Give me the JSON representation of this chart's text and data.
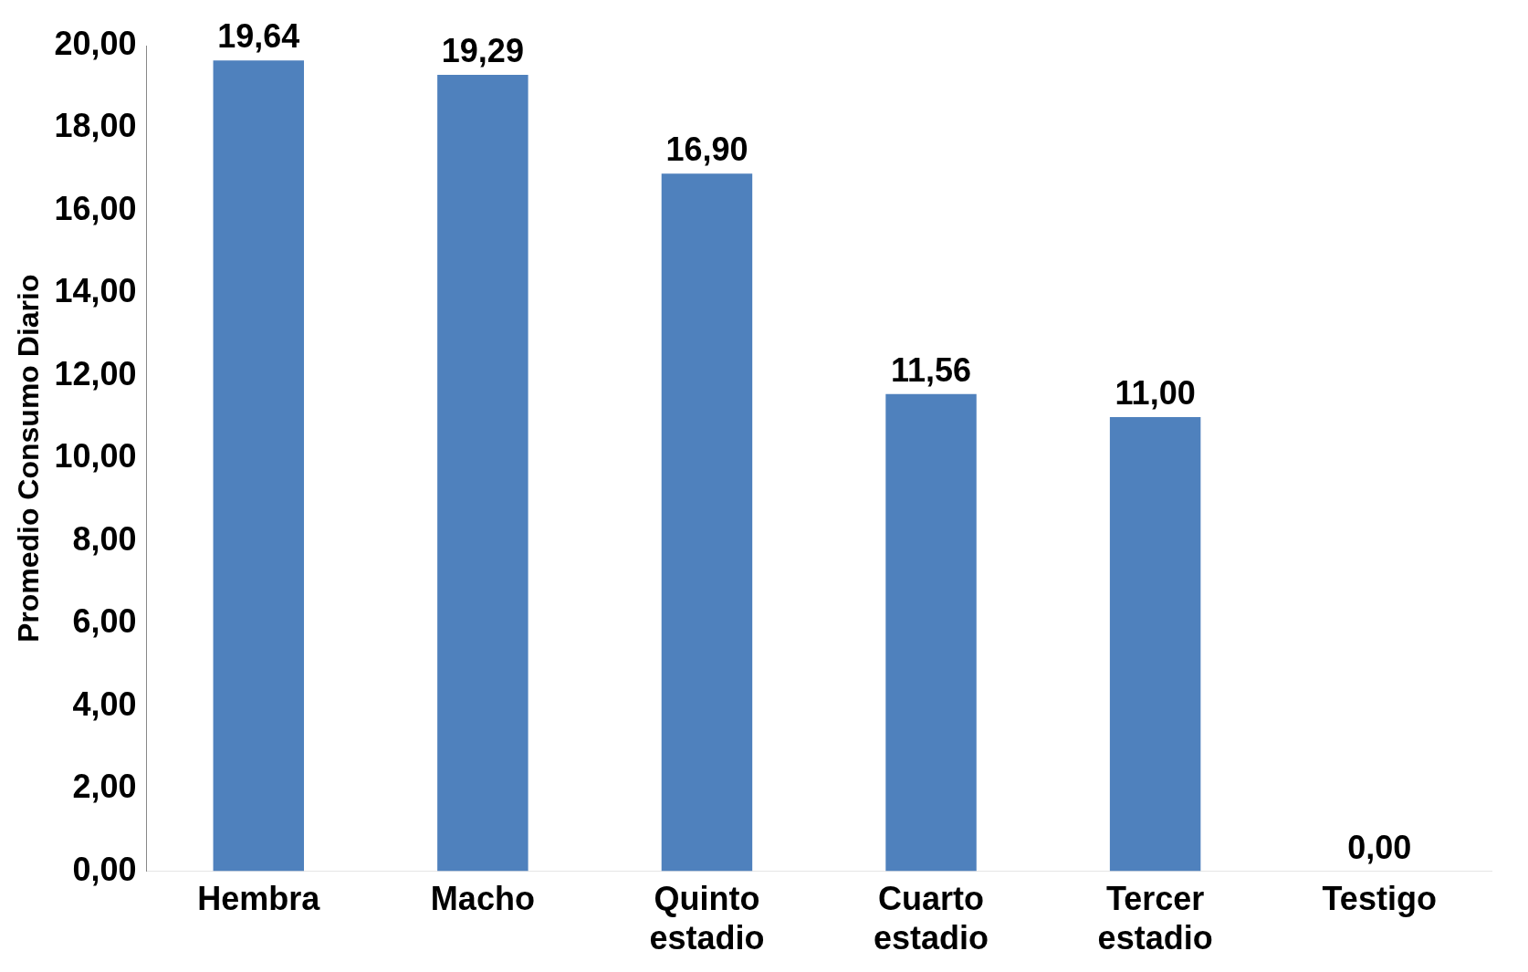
{
  "chart_data": {
    "type": "bar",
    "ylabel": "Promedio Consumo Diario",
    "categories": [
      "Hembra",
      "Macho",
      "Quinto estadio",
      "Cuarto estadio",
      "Tercer estadio",
      "Testigo"
    ],
    "values": [
      19.64,
      19.29,
      16.9,
      11.56,
      11,
      0
    ],
    "value_labels": [
      "19,64",
      "19,29",
      "16,90",
      "11,56",
      "11,00",
      "0,00"
    ],
    "color": "#4f81bd",
    "ylim": [
      0,
      20
    ],
    "yticks": [
      {
        "value": 0,
        "label": "0,00"
      },
      {
        "value": 2,
        "label": "2,00"
      },
      {
        "value": 4,
        "label": "4,00"
      },
      {
        "value": 6,
        "label": "6,00"
      },
      {
        "value": 8,
        "label": "8,00"
      },
      {
        "value": 10,
        "label": "10,00"
      },
      {
        "value": 12,
        "label": "12,00"
      },
      {
        "value": 14,
        "label": "14,00"
      },
      {
        "value": 16,
        "label": "16,00"
      },
      {
        "value": 18,
        "label": "18,00"
      },
      {
        "value": 20,
        "label": "20,00"
      }
    ],
    "grid": false,
    "legend": false
  }
}
